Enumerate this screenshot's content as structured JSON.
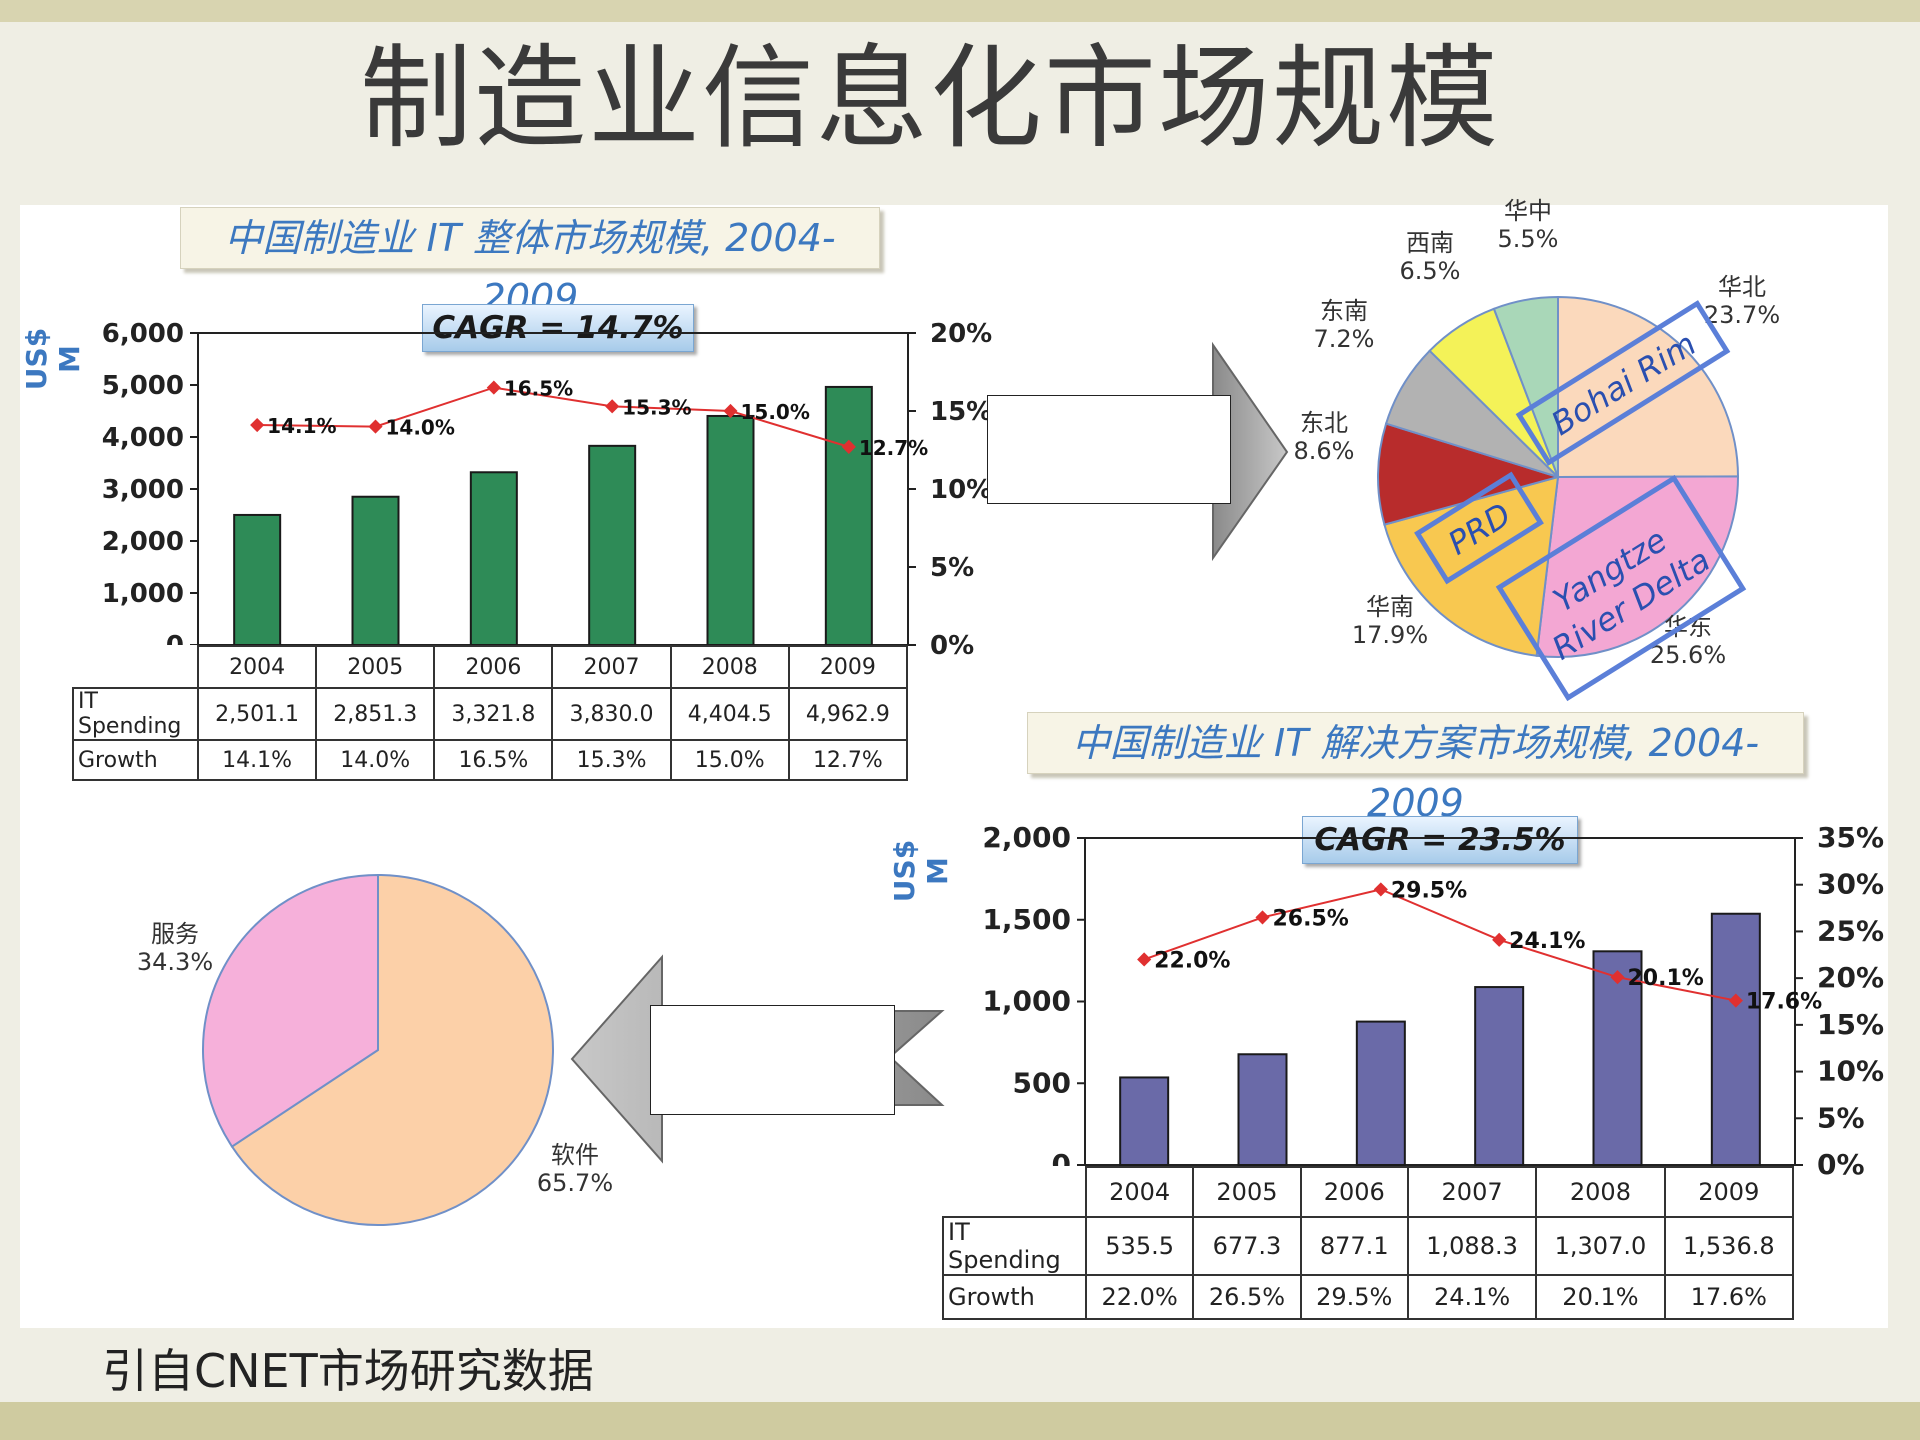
{
  "slide": {
    "title": "制造业信息化市场规模",
    "source_note": "引自CNET市场研究数据"
  },
  "chart_data": [
    {
      "id": "overall",
      "type": "bar",
      "title": "中国制造业 IT 整体市场规模, 2004-2009",
      "ylabel": "US$ M",
      "annotation": "CAGR = 14.7%",
      "categories": [
        "2004",
        "2005",
        "2006",
        "2007",
        "2008",
        "2009"
      ],
      "ylim": [
        0,
        6000
      ],
      "y_ticks": [
        "0",
        "1,000",
        "2,000",
        "3,000",
        "4,000",
        "5,000",
        "6,000"
      ],
      "y2lim": [
        0,
        20
      ],
      "y2_ticks": [
        "0%",
        "5%",
        "10%",
        "15%",
        "20%"
      ],
      "bar_color": "#2e8b57",
      "line_color": "#e03030",
      "series": [
        {
          "type": "bar",
          "values": [
            2501.1,
            2851.3,
            3321.8,
            3830.0,
            4404.5,
            4962.9
          ],
          "labels": [
            "2,501.1",
            "2,851.3",
            "3,321.8",
            "3,830.0",
            "4,404.5",
            "4,962.9"
          ]
        },
        {
          "type": "line",
          "axis": "right",
          "values": [
            14.1,
            14.0,
            16.5,
            15.3,
            15.0,
            12.7
          ],
          "labels": [
            "14.1%",
            "14.0%",
            "16.5%",
            "15.3%",
            "15.0%",
            "12.7%"
          ]
        }
      ],
      "table": {
        "row_labels": [
          "IT Spending",
          "Growth"
        ]
      }
    },
    {
      "id": "regions",
      "type": "pie",
      "slices": [
        {
          "label": "华北",
          "value": 23.7,
          "text": "23.7%",
          "color": "#fbd9bc"
        },
        {
          "label": "华东",
          "value": 25.6,
          "text": "25.6%",
          "color": "#f3a7d3"
        },
        {
          "label": "华南",
          "value": 17.9,
          "text": "17.9%",
          "color": "#f8c850"
        },
        {
          "label": "东北",
          "value": 8.6,
          "text": "8.6%",
          "color": "#b82c2c"
        },
        {
          "label": "东南",
          "value": 7.2,
          "text": "7.2%",
          "color": "#b2b2b2"
        },
        {
          "label": "西南",
          "value": 6.5,
          "text": "6.5%",
          "color": "#f4f258"
        },
        {
          "label": "华中",
          "value": 5.5,
          "text": "5.5%",
          "color": "#a9d7b8"
        }
      ],
      "region_boxes": [
        "Bohai Rim",
        "PRD",
        "Yangtze",
        "River Delta"
      ]
    },
    {
      "id": "solutions",
      "type": "bar",
      "title": "中国制造业 IT 解决方案市场规模, 2004-2009",
      "ylabel": "US$ M",
      "annotation": "CAGR = 23.5%",
      "categories": [
        "2004",
        "2005",
        "2006",
        "2007",
        "2008",
        "2009"
      ],
      "ylim": [
        0,
        2000
      ],
      "y_ticks": [
        "0",
        "500",
        "1,000",
        "1,500",
        "2,000"
      ],
      "y2lim": [
        0,
        35
      ],
      "y2_ticks": [
        "0%",
        "5%",
        "10%",
        "15%",
        "20%",
        "25%",
        "30%",
        "35%"
      ],
      "bar_color": "#6a6aa8",
      "line_color": "#e03030",
      "series": [
        {
          "type": "bar",
          "values": [
            535.5,
            677.3,
            877.1,
            1088.3,
            1307.0,
            1536.8
          ],
          "labels": [
            "535.5",
            "677.3",
            "877.1",
            "1,088.3",
            "1,307.0",
            "1,536.8"
          ]
        },
        {
          "type": "line",
          "axis": "right",
          "values": [
            22.0,
            26.5,
            29.5,
            24.1,
            20.1,
            17.6
          ],
          "labels": [
            "22.0%",
            "26.5%",
            "29.5%",
            "24.1%",
            "20.1%",
            "17.6%"
          ]
        }
      ],
      "table": {
        "row_labels": [
          "IT Spending",
          "Growth"
        ]
      }
    },
    {
      "id": "split",
      "type": "pie",
      "slices": [
        {
          "label": "软件",
          "value": 65.7,
          "text": "65.7%",
          "color": "#fcd0a8"
        },
        {
          "label": "服务",
          "value": 34.3,
          "text": "34.3%",
          "color": "#f6b0da"
        }
      ]
    }
  ]
}
